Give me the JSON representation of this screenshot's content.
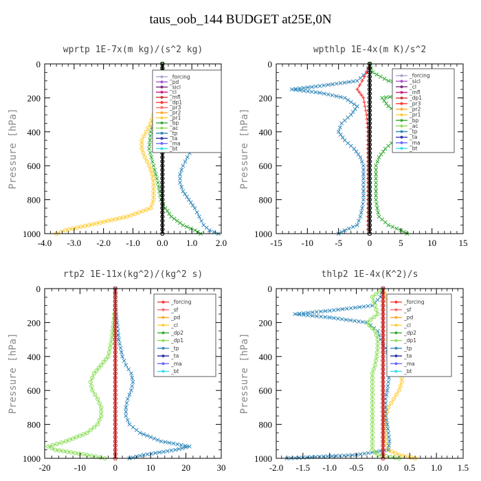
{
  "title": "taus_oob_144  BUDGET at25E,0N",
  "chart_data": [
    {
      "type": "line",
      "title": "wprtp  1E-7x(m kg)/(s^2 kg)",
      "ylabel": "Pressure [hPa]",
      "xlim": [
        -4.0,
        2.0
      ],
      "ylim": [
        0,
        1000
      ],
      "y_inverted": true,
      "xticks": [
        "-4.0",
        "-3.0",
        "-2.0",
        "-1.0",
        "0.0",
        "1.0",
        "2.0"
      ],
      "xtick_values": [
        -4,
        -3,
        -2,
        -1,
        0,
        1,
        2
      ],
      "yticks": [
        "0",
        "200",
        "400",
        "600",
        "800",
        "1000"
      ],
      "ytick_values": [
        0,
        200,
        400,
        600,
        800,
        1000
      ],
      "legend": [
        "_forcing",
        "_pd",
        "_sicl",
        "_cl",
        "_mfl",
        "_dp1",
        "_pr3",
        "_pr2",
        "_pr1",
        "_bp",
        "_ac",
        "_tp",
        "_ta",
        "_ma",
        "_bt"
      ],
      "legend_colors": [
        "#b0a0cc",
        "#aa55cc",
        "#7a2a7a",
        "#cc2288",
        "#cc3333",
        "#ff3333",
        "#ff6666",
        "#ffaa33",
        "#ffcc33",
        "#33aa33",
        "#88dd55",
        "#3388bb",
        "#3333aa",
        "#6666ff",
        "#33ddee"
      ],
      "series": [
        {
          "name": "_pr1",
          "color": "#ffcc33",
          "marker": "o",
          "y": [
            0,
            50,
            100,
            150,
            200,
            250,
            300,
            350,
            400,
            450,
            500,
            550,
            600,
            650,
            700,
            750,
            800,
            850,
            900,
            950,
            980,
            1000
          ],
          "values": [
            0,
            0,
            -0.02,
            -0.05,
            -0.1,
            -0.2,
            -0.3,
            -0.4,
            -0.55,
            -0.7,
            -0.7,
            -0.6,
            -0.45,
            -0.35,
            -0.3,
            -0.3,
            -0.3,
            -0.4,
            -1.2,
            -2.5,
            -3.3,
            -3.6
          ]
        },
        {
          "name": "_tp",
          "color": "#3388bb",
          "marker": "x",
          "y": [
            0,
            50,
            100,
            150,
            200,
            250,
            300,
            350,
            400,
            450,
            500,
            550,
            600,
            650,
            700,
            750,
            800,
            850,
            900,
            950,
            980,
            1000
          ],
          "values": [
            0,
            0,
            0.02,
            0.05,
            0.1,
            0.2,
            0.4,
            0.7,
            0.95,
            1.1,
            1.0,
            0.85,
            0.7,
            0.6,
            0.6,
            0.7,
            0.9,
            1.1,
            1.25,
            1.4,
            1.6,
            1.9
          ]
        },
        {
          "name": "_bp",
          "color": "#33aa33",
          "marker": "x",
          "y": [
            0,
            100,
            200,
            250,
            300,
            400,
            500,
            600,
            700,
            800,
            850,
            900,
            950,
            980,
            1000
          ],
          "values": [
            0,
            0,
            -0.05,
            -0.1,
            -0.2,
            -0.4,
            -0.45,
            -0.3,
            -0.15,
            -0.05,
            0.1,
            0.3,
            0.7,
            1.1,
            1.3
          ]
        },
        {
          "name": "_bt",
          "color": "#000000",
          "marker": "o",
          "y": [
            0,
            100,
            200,
            300,
            400,
            500,
            600,
            700,
            800,
            900,
            1000
          ],
          "values": [
            0,
            0,
            0,
            0,
            0,
            0,
            0,
            0,
            0,
            0,
            0
          ]
        }
      ]
    },
    {
      "type": "line",
      "title": "wpthlp  1E-4x(m K)/s^2",
      "ylabel": "Pressure [hPa]",
      "xlim": [
        -15,
        15
      ],
      "ylim": [
        0,
        1000
      ],
      "y_inverted": true,
      "xticks": [
        "-15",
        "-10",
        "-5",
        "0",
        "5",
        "10",
        "15"
      ],
      "xtick_values": [
        -15,
        -10,
        -5,
        0,
        5,
        10,
        15
      ],
      "yticks": [
        "0",
        "200",
        "400",
        "600",
        "800",
        "1000"
      ],
      "ytick_values": [
        0,
        200,
        400,
        600,
        800,
        1000
      ],
      "legend": [
        "_forcing",
        "_sicl",
        "_cl",
        "_mfl",
        "_dp1",
        "_pr3",
        "_pr2",
        "_pr1",
        "_bp",
        "_ac",
        "_tp",
        "_ta",
        "_ma",
        "_bt"
      ],
      "legend_colors": [
        "#b0a0cc",
        "#aa55cc",
        "#7a2a7a",
        "#cc2288",
        "#cc3333",
        "#ff3333",
        "#ffaa33",
        "#ffcc33",
        "#33aa33",
        "#88dd55",
        "#3388bb",
        "#3333aa",
        "#6666ff",
        "#33ddee"
      ],
      "series": [
        {
          "name": "_tp",
          "color": "#3388bb",
          "marker": "x",
          "y": [
            0,
            50,
            100,
            130,
            150,
            170,
            200,
            250,
            300,
            350,
            400,
            450,
            500,
            550,
            600,
            650,
            700,
            750,
            800,
            850,
            900,
            950,
            980,
            1000
          ],
          "values": [
            0,
            -0.5,
            -2,
            -8,
            -12.5,
            -8,
            -4,
            -2,
            -3,
            -4.5,
            -5,
            -4,
            -2.5,
            -1.5,
            -1,
            -1,
            -1,
            -1,
            -1,
            -1.2,
            -1.5,
            -2,
            -4,
            -5
          ]
        },
        {
          "name": "_bp",
          "color": "#33aa33",
          "marker": "x",
          "y": [
            0,
            50,
            100,
            130,
            150,
            170,
            200,
            250,
            300,
            350,
            400,
            450,
            500,
            550,
            600,
            650,
            700,
            750,
            800,
            850,
            900,
            950,
            980,
            1000
          ],
          "values": [
            0,
            0.5,
            3,
            9,
            13,
            9,
            2,
            3,
            5,
            5.5,
            5,
            4,
            2.5,
            1.5,
            1,
            1,
            1,
            1,
            1,
            1.2,
            1.5,
            3,
            5,
            6
          ]
        },
        {
          "name": "_dp1",
          "color": "#ff3333",
          "marker": "+",
          "y": [
            0,
            50,
            100,
            150,
            200,
            300,
            400,
            500,
            600,
            700,
            800,
            900,
            1000
          ],
          "values": [
            0,
            -0.5,
            -1.2,
            -2,
            -1,
            -0.5,
            -0.3,
            -0.3,
            -0.3,
            -0.3,
            -0.3,
            -0.3,
            -0.3
          ]
        },
        {
          "name": "_bt",
          "color": "#000000",
          "marker": "o",
          "y": [
            0,
            100,
            200,
            300,
            400,
            500,
            600,
            700,
            800,
            900,
            1000
          ],
          "values": [
            0,
            0,
            0,
            0,
            0,
            0,
            0,
            0,
            0,
            0,
            0
          ]
        }
      ]
    },
    {
      "type": "line",
      "title": "rtp2  1E-11x(kg^2)/(kg^2 s)",
      "ylabel": "Pressure [hPa]",
      "xlim": [
        -20,
        30
      ],
      "ylim": [
        0,
        1000
      ],
      "y_inverted": true,
      "xticks": [
        "-20",
        "-10",
        "0",
        "10",
        "20",
        "30"
      ],
      "xtick_values": [
        -20,
        -10,
        0,
        10,
        20,
        30
      ],
      "yticks": [
        "0",
        "200",
        "400",
        "600",
        "800",
        "1000"
      ],
      "ytick_values": [
        0,
        200,
        400,
        600,
        800,
        1000
      ],
      "legend": [
        "_forcing",
        "_sf",
        "_pd",
        "_cl",
        "_dp2",
        "_dp1",
        "_tp",
        "_ta",
        "_ma",
        "_bt"
      ],
      "legend_colors": [
        "#ff3333",
        "#ff6666",
        "#ffaa33",
        "#ffcc33",
        "#33aa33",
        "#88dd55",
        "#3388bb",
        "#3333aa",
        "#6666ff",
        "#33ddee"
      ],
      "series": [
        {
          "name": "_dp1",
          "color": "#88dd55",
          "marker": "o",
          "y": [
            0,
            100,
            200,
            300,
            400,
            450,
            500,
            550,
            600,
            650,
            700,
            750,
            800,
            850,
            900,
            930,
            950,
            980,
            1000
          ],
          "values": [
            0,
            0,
            -0.5,
            -1,
            -2,
            -4,
            -6,
            -7,
            -6.5,
            -5,
            -4,
            -4,
            -5,
            -8,
            -14,
            -19,
            -17,
            -8,
            -3
          ]
        },
        {
          "name": "_tp",
          "color": "#3388bb",
          "marker": "x",
          "y": [
            0,
            100,
            200,
            300,
            400,
            450,
            500,
            550,
            600,
            650,
            700,
            750,
            800,
            850,
            900,
            930,
            950,
            980,
            1000
          ],
          "values": [
            0,
            0,
            0.5,
            1,
            2,
            3,
            4.5,
            5,
            4.5,
            3.5,
            3,
            3,
            4,
            7,
            13,
            21,
            17,
            8,
            4
          ]
        },
        {
          "name": "_bt",
          "color": "#cc2222",
          "marker": "o",
          "y": [
            0,
            100,
            200,
            300,
            400,
            500,
            600,
            700,
            800,
            900,
            1000
          ],
          "values": [
            0,
            0,
            0,
            0,
            0,
            0,
            0,
            0,
            0,
            0,
            0
          ]
        }
      ]
    },
    {
      "type": "line",
      "title": "thlp2  1E-4x(K^2)/s",
      "ylabel": "Pressure [hPa]",
      "xlim": [
        -2.0,
        1.5
      ],
      "ylim": [
        0,
        1000
      ],
      "y_inverted": true,
      "xticks": [
        "-2.0",
        "-1.5",
        "-1.0",
        "-0.5",
        "0.0",
        "0.5",
        "1.0",
        "1.5"
      ],
      "xtick_values": [
        -2,
        -1.5,
        -1,
        -0.5,
        0,
        0.5,
        1,
        1.5
      ],
      "yticks": [
        "0",
        "200",
        "400",
        "600",
        "800",
        "1000"
      ],
      "ytick_values": [
        0,
        200,
        400,
        600,
        800,
        1000
      ],
      "legend": [
        "_forcing",
        "_sf",
        "_pd",
        "_cl",
        "_dp2",
        "_dp1",
        "_tp",
        "_ta",
        "_ma",
        "_bt"
      ],
      "legend_colors": [
        "#ff3333",
        "#ff6666",
        "#ffaa33",
        "#ffcc33",
        "#33aa33",
        "#88dd55",
        "#3388bb",
        "#3333aa",
        "#6666ff",
        "#33ddee"
      ],
      "series": [
        {
          "name": "_cl",
          "color": "#ffcc33",
          "marker": "o",
          "y": [
            0,
            50,
            100,
            130,
            150,
            170,
            200,
            250,
            300,
            350,
            400,
            450,
            500,
            550,
            600,
            650,
            700,
            750,
            800,
            850,
            900,
            950,
            980,
            1000
          ],
          "values": [
            0,
            0.05,
            0.1,
            0.4,
            0.75,
            0.5,
            0.2,
            0.1,
            0.1,
            0.15,
            0.2,
            0.3,
            0.35,
            0.35,
            0.3,
            0.2,
            0.1,
            0.05,
            0.05,
            0.05,
            0.05,
            0.1,
            0.3,
            0.6
          ]
        },
        {
          "name": "_tp",
          "color": "#3388bb",
          "marker": "x",
          "y": [
            0,
            50,
            100,
            130,
            150,
            170,
            200,
            250,
            300,
            350,
            400,
            450,
            500,
            550,
            600,
            650,
            700,
            750,
            800,
            850,
            900,
            950,
            980,
            1000
          ],
          "values": [
            0,
            -0.05,
            -0.2,
            -1.0,
            -1.65,
            -1.0,
            -0.3,
            -0.1,
            -0.05,
            0.05,
            0.1,
            0.12,
            0.12,
            0.1,
            0.08,
            0.05,
            0.05,
            0.05,
            0.08,
            0.1,
            0.12,
            0.1,
            -0.5,
            -1.8
          ]
        },
        {
          "name": "_dp1",
          "color": "#88dd55",
          "marker": "o",
          "y": [
            0,
            50,
            100,
            150,
            200,
            250,
            300,
            350,
            400,
            450,
            500,
            550,
            600,
            650,
            700,
            750,
            800,
            850,
            900,
            950,
            980,
            1000
          ],
          "values": [
            0,
            -0.2,
            -0.15,
            -0.1,
            -0.3,
            -0.15,
            -0.1,
            -0.1,
            -0.12,
            -0.15,
            -0.2,
            -0.2,
            -0.2,
            -0.2,
            -0.2,
            -0.2,
            -0.2,
            -0.2,
            -0.2,
            -0.2,
            -0.1,
            0.3
          ]
        },
        {
          "name": "_bt",
          "color": "#cc2222",
          "marker": "o",
          "y": [
            0,
            100,
            200,
            300,
            400,
            500,
            600,
            700,
            800,
            900,
            1000
          ],
          "values": [
            0,
            0,
            0,
            0,
            0,
            0,
            0,
            0,
            0,
            0,
            0
          ]
        }
      ]
    }
  ]
}
